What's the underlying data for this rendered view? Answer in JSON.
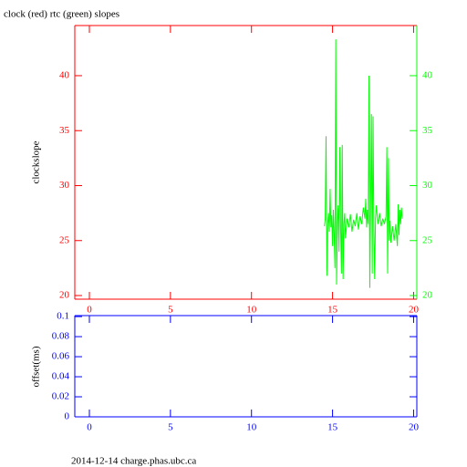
{
  "chart_data": [
    {
      "type": "line",
      "title": "clock (red) rtc (green) slopes",
      "ylabel": "clockslope",
      "xlim": [
        -0.9,
        20.2
      ],
      "xticks": [
        0,
        5,
        10,
        15,
        20
      ],
      "ylim": [
        19.67,
        44.56
      ],
      "yticks": [
        20,
        25,
        30,
        35,
        40
      ],
      "y2lim": [
        19.67,
        44.56
      ],
      "y2ticks": [
        20,
        25,
        30,
        35,
        40
      ],
      "axis_color": "#ff0000",
      "y2_axis_color": "#00ff00",
      "series": [
        {
          "color": "#00ff00",
          "axis": "y2",
          "x": [
            14.5,
            14.55,
            14.6,
            14.65,
            14.7,
            14.75,
            14.8,
            14.85,
            14.9,
            14.95,
            15.0,
            15.05,
            15.1,
            15.15,
            15.2,
            15.25,
            15.3,
            15.35,
            15.4,
            15.45,
            15.5,
            15.55,
            15.6,
            15.65,
            15.7,
            15.75,
            15.8,
            15.9,
            16.0,
            16.1,
            16.2,
            16.3,
            16.4,
            16.5,
            16.6,
            16.7,
            16.8,
            16.9,
            17.0,
            17.05,
            17.1,
            17.15,
            17.2,
            17.25,
            17.3,
            17.35,
            17.4,
            17.45,
            17.5,
            17.55,
            17.6,
            17.65,
            17.7,
            17.8,
            17.9,
            18.0,
            18.1,
            18.2,
            18.3,
            18.35,
            18.4,
            18.45,
            18.5,
            18.55,
            18.6,
            18.7,
            18.8,
            18.9,
            19.0,
            19.05,
            19.1,
            19.15,
            19.2,
            19.25,
            19.3
          ],
          "values": [
            26.3,
            27.0,
            34.5,
            21.8,
            26.5,
            27.5,
            25.8,
            29.7,
            26.2,
            27.3,
            24.5,
            27.8,
            25.5,
            22.5,
            43.3,
            21.0,
            26.8,
            28.2,
            24.0,
            33.5,
            26.0,
            22.0,
            33.7,
            21.5,
            26.5,
            27.5,
            25.2,
            27.0,
            26.2,
            27.4,
            25.8,
            26.9,
            26.3,
            27.5,
            26.0,
            27.2,
            26.5,
            28.0,
            27.0,
            28.8,
            26.2,
            27.8,
            26.5,
            40.0,
            20.7,
            28.5,
            36.5,
            22.0,
            36.3,
            26.0,
            21.5,
            27.0,
            28.2,
            26.5,
            27.5,
            26.3,
            27.0,
            26.5,
            27.2,
            33.5,
            22.0,
            32.5,
            25.0,
            26.8,
            24.8,
            26.3,
            25.0,
            26.5,
            24.5,
            28.3,
            25.5,
            27.8,
            26.5,
            28.0,
            27.0
          ]
        }
      ]
    },
    {
      "type": "line",
      "ylabel": "offset(ms)",
      "xlim": [
        -0.9,
        20.2
      ],
      "xticks": [
        0,
        5,
        10,
        15,
        20
      ],
      "ylim": [
        0,
        0.101
      ],
      "yticks": [
        0,
        0.02,
        0.04,
        0.06,
        0.08,
        0.1
      ],
      "axis_color": "#0000ff",
      "series": []
    }
  ],
  "footer": "2014-12-14 charge.phas.ubc.ca"
}
